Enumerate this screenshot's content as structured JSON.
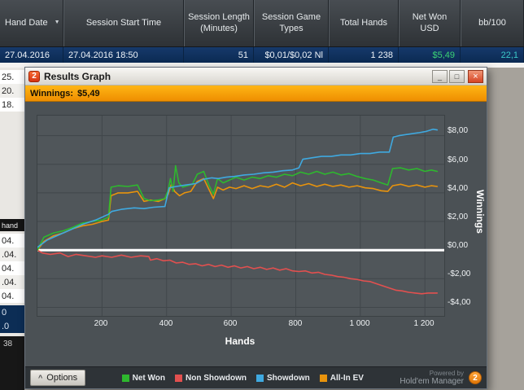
{
  "table": {
    "columns": [
      {
        "label": "Hand Date"
      },
      {
        "label": "Session Start Time"
      },
      {
        "label": "Session Length (Minutes)"
      },
      {
        "label": "Session Game Types"
      },
      {
        "label": "Total Hands"
      },
      {
        "label": "Net Won USD"
      },
      {
        "label": "bb/100"
      }
    ],
    "row": {
      "hand_date": "27.04.2016",
      "session_start_time": "27.04.2016 18:50",
      "session_length": "51",
      "session_game_types": "$0,01/$0,02 Nl",
      "total_hands": "1 238",
      "net_won_usd": "$5,49",
      "bb_100": "22,1"
    },
    "left_fragments": [
      "25.",
      "20.",
      "18.",
      "hand",
      "04.",
      ".04.",
      "04.",
      ".04.",
      "04.",
      "0",
      ".0",
      "38"
    ]
  },
  "window": {
    "title": "Results Graph",
    "logo_text": "2",
    "buttons": {
      "minimize": "_",
      "maximize": "□",
      "close": "×"
    },
    "banner": {
      "label": "Winnings:",
      "value": "$5,49"
    },
    "options_label": "Options",
    "options_icon": "^",
    "powered_by": {
      "line1": "Powered by",
      "line2": "Hold'em Manager",
      "logo": "2"
    }
  },
  "chart_data": {
    "type": "line",
    "title": "Winnings: $5,49",
    "xlabel": "Hands",
    "ylabel": "Winnings",
    "legend_position": "bottom",
    "grid": true,
    "grid_color": "#41474b",
    "zero_line_color": "#ffffff",
    "xlim": [
      0,
      1260
    ],
    "ylim": [
      -4.6,
      9.4
    ],
    "x_ticks": [
      "200",
      "400",
      "600",
      "800",
      "1 000",
      "1 200"
    ],
    "x_tick_values": [
      200,
      400,
      600,
      800,
      1000,
      1200
    ],
    "y_ticks": [
      "$8,00",
      "$6,00",
      "$4,00",
      "$2,00",
      "$0,00",
      "-$2,00",
      "-$4,00"
    ],
    "y_tick_values": [
      8,
      6,
      4,
      2,
      0,
      -2,
      -4
    ],
    "series": [
      {
        "name": "Non Showdown",
        "color": "#e2504f",
        "points": [
          [
            0,
            0
          ],
          [
            15,
            -0.2
          ],
          [
            40,
            -0.3
          ],
          [
            70,
            -0.2
          ],
          [
            95,
            -0.45
          ],
          [
            120,
            -0.3
          ],
          [
            150,
            -0.4
          ],
          [
            180,
            -0.5
          ],
          [
            200,
            -0.4
          ],
          [
            230,
            -0.5
          ],
          [
            260,
            -0.35
          ],
          [
            290,
            -0.5
          ],
          [
            320,
            -0.4
          ],
          [
            345,
            -0.45
          ],
          [
            350,
            -0.7
          ],
          [
            370,
            -0.6
          ],
          [
            390,
            -0.75
          ],
          [
            410,
            -0.7
          ],
          [
            430,
            -0.9
          ],
          [
            450,
            -0.85
          ],
          [
            470,
            -1.0
          ],
          [
            490,
            -0.95
          ],
          [
            510,
            -1.1
          ],
          [
            530,
            -1.0
          ],
          [
            550,
            -1.15
          ],
          [
            570,
            -1.05
          ],
          [
            590,
            -1.2
          ],
          [
            610,
            -1.1
          ],
          [
            630,
            -1.25
          ],
          [
            650,
            -1.15
          ],
          [
            670,
            -1.3
          ],
          [
            690,
            -1.2
          ],
          [
            710,
            -1.35
          ],
          [
            730,
            -1.25
          ],
          [
            750,
            -1.4
          ],
          [
            770,
            -1.3
          ],
          [
            790,
            -1.45
          ],
          [
            810,
            -1.5
          ],
          [
            830,
            -1.45
          ],
          [
            850,
            -1.6
          ],
          [
            870,
            -1.55
          ],
          [
            890,
            -1.7
          ],
          [
            910,
            -1.75
          ],
          [
            930,
            -1.85
          ],
          [
            950,
            -1.9
          ],
          [
            970,
            -2.0
          ],
          [
            990,
            -2.05
          ],
          [
            1010,
            -2.15
          ],
          [
            1030,
            -2.2
          ],
          [
            1050,
            -2.35
          ],
          [
            1070,
            -2.5
          ],
          [
            1090,
            -2.65
          ],
          [
            1110,
            -2.8
          ],
          [
            1130,
            -2.85
          ],
          [
            1150,
            -2.95
          ],
          [
            1170,
            -3.0
          ],
          [
            1190,
            -3.05
          ],
          [
            1210,
            -3.0
          ],
          [
            1238,
            -3.0
          ]
        ]
      },
      {
        "name": "All-In EV",
        "color": "#e8930c",
        "points": [
          [
            0,
            0
          ],
          [
            20,
            0.6
          ],
          [
            50,
            1.0
          ],
          [
            80,
            1.2
          ],
          [
            110,
            1.5
          ],
          [
            140,
            1.7
          ],
          [
            170,
            1.8
          ],
          [
            200,
            2.0
          ],
          [
            220,
            2.1
          ],
          [
            228,
            3.8
          ],
          [
            250,
            4.0
          ],
          [
            280,
            4.0
          ],
          [
            310,
            4.1
          ],
          [
            330,
            3.4
          ],
          [
            350,
            3.5
          ],
          [
            375,
            3.4
          ],
          [
            395,
            3.6
          ],
          [
            405,
            3.9
          ],
          [
            415,
            4.6
          ],
          [
            425,
            4.1
          ],
          [
            440,
            3.8
          ],
          [
            455,
            4.0
          ],
          [
            475,
            4.1
          ],
          [
            495,
            4.8
          ],
          [
            515,
            5.0
          ],
          [
            530,
            4.3
          ],
          [
            545,
            3.6
          ],
          [
            558,
            4.4
          ],
          [
            575,
            4.2
          ],
          [
            595,
            4.4
          ],
          [
            615,
            4.3
          ],
          [
            640,
            4.5
          ],
          [
            665,
            4.3
          ],
          [
            690,
            4.5
          ],
          [
            715,
            4.4
          ],
          [
            740,
            4.6
          ],
          [
            765,
            4.4
          ],
          [
            790,
            4.7
          ],
          [
            815,
            4.5
          ],
          [
            840,
            4.65
          ],
          [
            865,
            4.45
          ],
          [
            890,
            4.6
          ],
          [
            915,
            4.45
          ],
          [
            940,
            4.55
          ],
          [
            965,
            4.4
          ],
          [
            990,
            4.5
          ],
          [
            1015,
            4.35
          ],
          [
            1040,
            4.3
          ],
          [
            1065,
            4.15
          ],
          [
            1085,
            4.1
          ],
          [
            1100,
            4.5
          ],
          [
            1125,
            4.6
          ],
          [
            1150,
            4.45
          ],
          [
            1175,
            4.55
          ],
          [
            1200,
            4.4
          ],
          [
            1220,
            4.5
          ],
          [
            1238,
            4.45
          ]
        ]
      },
      {
        "name": "Net Won",
        "color": "#2eb82e",
        "points": [
          [
            0,
            0
          ],
          [
            20,
            0.9
          ],
          [
            50,
            1.2
          ],
          [
            80,
            1.35
          ],
          [
            110,
            1.6
          ],
          [
            140,
            1.9
          ],
          [
            170,
            2.0
          ],
          [
            200,
            2.1
          ],
          [
            220,
            2.3
          ],
          [
            228,
            4.4
          ],
          [
            250,
            4.5
          ],
          [
            280,
            4.45
          ],
          [
            310,
            4.55
          ],
          [
            330,
            3.6
          ],
          [
            350,
            3.45
          ],
          [
            375,
            3.5
          ],
          [
            395,
            3.6
          ],
          [
            405,
            4.2
          ],
          [
            412,
            5.0
          ],
          [
            420,
            4.1
          ],
          [
            428,
            5.9
          ],
          [
            438,
            4.7
          ],
          [
            450,
            4.4
          ],
          [
            465,
            4.5
          ],
          [
            480,
            4.6
          ],
          [
            495,
            5.3
          ],
          [
            515,
            5.5
          ],
          [
            530,
            4.6
          ],
          [
            545,
            3.9
          ],
          [
            558,
            5.0
          ],
          [
            575,
            4.7
          ],
          [
            595,
            4.9
          ],
          [
            615,
            5.1
          ],
          [
            640,
            4.9
          ],
          [
            665,
            5.1
          ],
          [
            690,
            5.0
          ],
          [
            715,
            5.2
          ],
          [
            740,
            5.1
          ],
          [
            765,
            5.3
          ],
          [
            790,
            5.2
          ],
          [
            815,
            5.45
          ],
          [
            840,
            5.3
          ],
          [
            865,
            5.5
          ],
          [
            890,
            5.3
          ],
          [
            915,
            5.45
          ],
          [
            940,
            5.25
          ],
          [
            965,
            5.35
          ],
          [
            990,
            5.15
          ],
          [
            1015,
            5.0
          ],
          [
            1040,
            4.9
          ],
          [
            1065,
            4.7
          ],
          [
            1085,
            4.55
          ],
          [
            1100,
            5.7
          ],
          [
            1125,
            5.75
          ],
          [
            1150,
            5.6
          ],
          [
            1175,
            5.7
          ],
          [
            1200,
            5.5
          ],
          [
            1220,
            5.6
          ],
          [
            1238,
            5.5
          ]
        ]
      },
      {
        "name": "Showdown",
        "color": "#3fa9e0",
        "points": [
          [
            0,
            0.2
          ],
          [
            30,
            0.7
          ],
          [
            60,
            1.0
          ],
          [
            100,
            1.4
          ],
          [
            140,
            1.8
          ],
          [
            180,
            2.1
          ],
          [
            220,
            2.5
          ],
          [
            230,
            2.7
          ],
          [
            260,
            2.85
          ],
          [
            300,
            2.95
          ],
          [
            330,
            2.9
          ],
          [
            360,
            3.0
          ],
          [
            395,
            3.05
          ],
          [
            408,
            4.35
          ],
          [
            430,
            4.45
          ],
          [
            460,
            4.55
          ],
          [
            490,
            4.65
          ],
          [
            515,
            4.95
          ],
          [
            540,
            5.05
          ],
          [
            560,
            5.0
          ],
          [
            585,
            5.1
          ],
          [
            610,
            5.15
          ],
          [
            640,
            5.25
          ],
          [
            670,
            5.3
          ],
          [
            700,
            5.4
          ],
          [
            730,
            5.45
          ],
          [
            760,
            5.55
          ],
          [
            790,
            5.6
          ],
          [
            810,
            5.75
          ],
          [
            822,
            6.35
          ],
          [
            850,
            6.45
          ],
          [
            880,
            6.55
          ],
          [
            910,
            6.55
          ],
          [
            940,
            6.65
          ],
          [
            970,
            6.65
          ],
          [
            1000,
            6.75
          ],
          [
            1030,
            6.75
          ],
          [
            1060,
            6.85
          ],
          [
            1090,
            6.85
          ],
          [
            1102,
            7.9
          ],
          [
            1120,
            8.0
          ],
          [
            1150,
            8.1
          ],
          [
            1180,
            8.2
          ],
          [
            1205,
            8.3
          ],
          [
            1225,
            8.45
          ],
          [
            1238,
            8.4
          ]
        ]
      }
    ]
  }
}
